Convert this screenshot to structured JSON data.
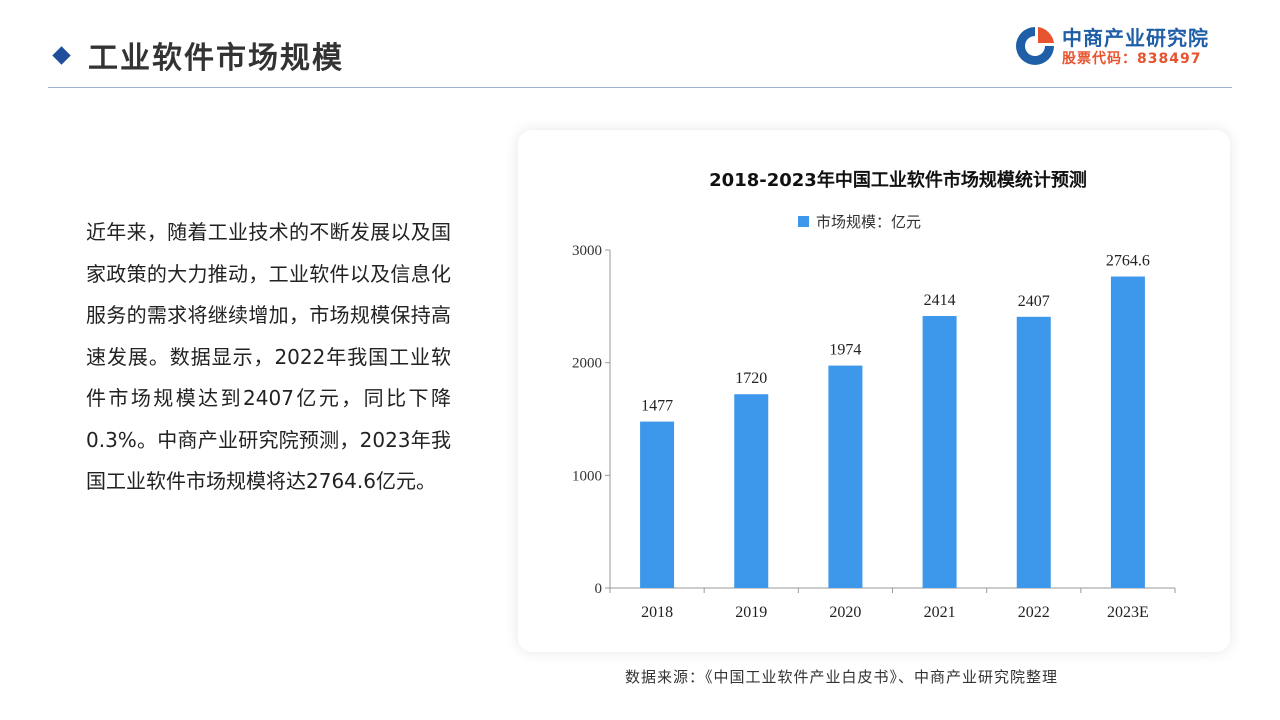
{
  "header": {
    "title": "工业软件市场规模",
    "logo_name": "中商产业研究院",
    "logo_code": "股票代码：838497"
  },
  "body": {
    "paragraph": "近年来，随着工业技术的不断发展以及国家政策的大力推动，工业软件以及信息化服务的需求将继续增加，市场规模保持高速发展。数据显示，2022年我国工业软件市场规模达到2407亿元，同比下降0.3%。中商产业研究院预测，2023年我国工业软件市场规模将达2764.6亿元。"
  },
  "footer": {
    "source": "数据来源：《中国工业软件产业白皮书》、中商产业研究院整理"
  },
  "colors": {
    "bar": "#3d97ea",
    "accent": "#1f4e9c",
    "logo_blue": "#1f5fa8",
    "logo_orange": "#e8532f"
  },
  "chart_data": {
    "type": "bar",
    "title": "2018-2023年中国工业软件市场规模统计预测",
    "legend_position": "top",
    "categories": [
      "2018",
      "2019",
      "2020",
      "2021",
      "2022",
      "2023E"
    ],
    "series": [
      {
        "name": "市场规模：亿元",
        "values": [
          1477,
          1720,
          1974,
          2414,
          2407,
          2764.6
        ],
        "labels": [
          "1477",
          "1720",
          "1974",
          "2414",
          "2407",
          "2764.6"
        ]
      }
    ],
    "ylim": [
      0,
      3000
    ],
    "yticks": [
      "0",
      "1000",
      "2000",
      "3000"
    ],
    "grid": false
  }
}
